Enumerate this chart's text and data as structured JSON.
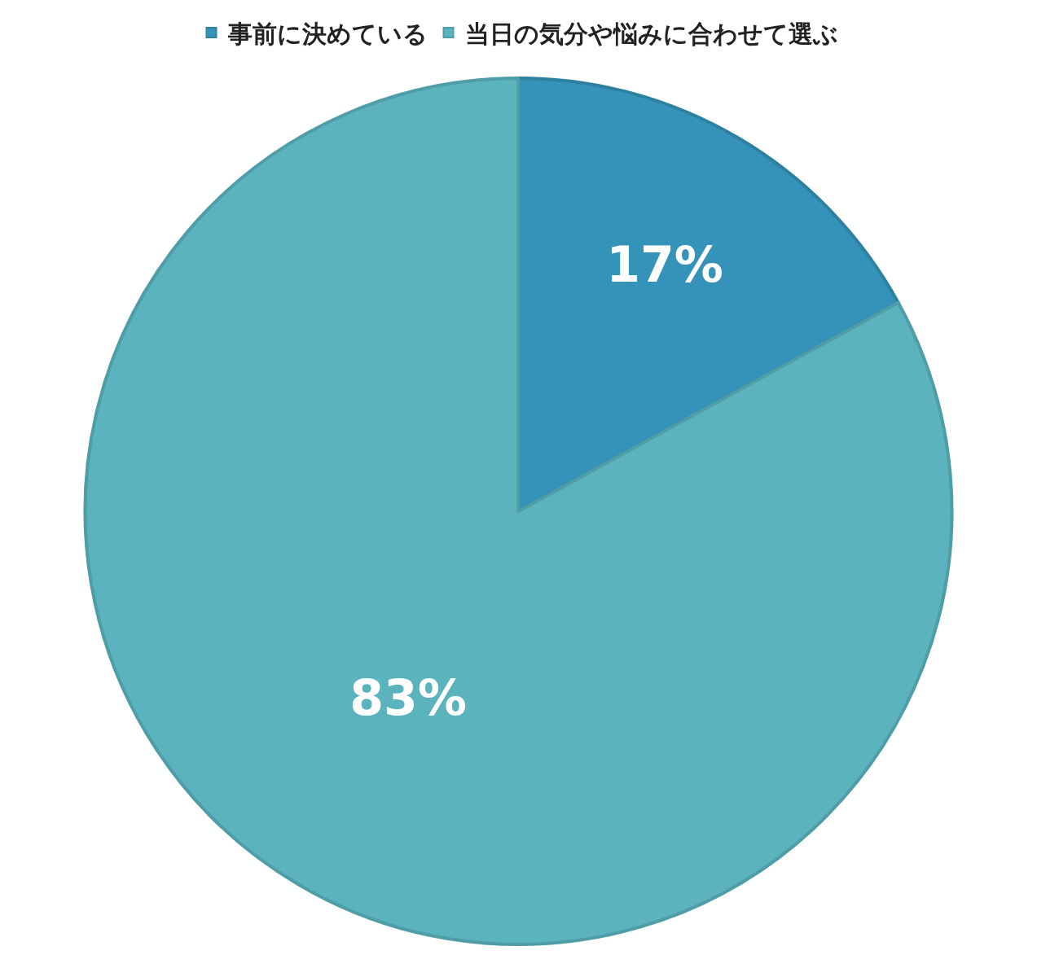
{
  "chart_data": {
    "type": "pie",
    "categories": [
      "事前に決めている",
      "当日の気分や悩みに合わせて選ぶ"
    ],
    "values": [
      17,
      83
    ],
    "colors": [
      "#3592b8",
      "#5ab3bd"
    ],
    "value_labels": [
      "17%",
      "83%"
    ],
    "legend": "top"
  }
}
